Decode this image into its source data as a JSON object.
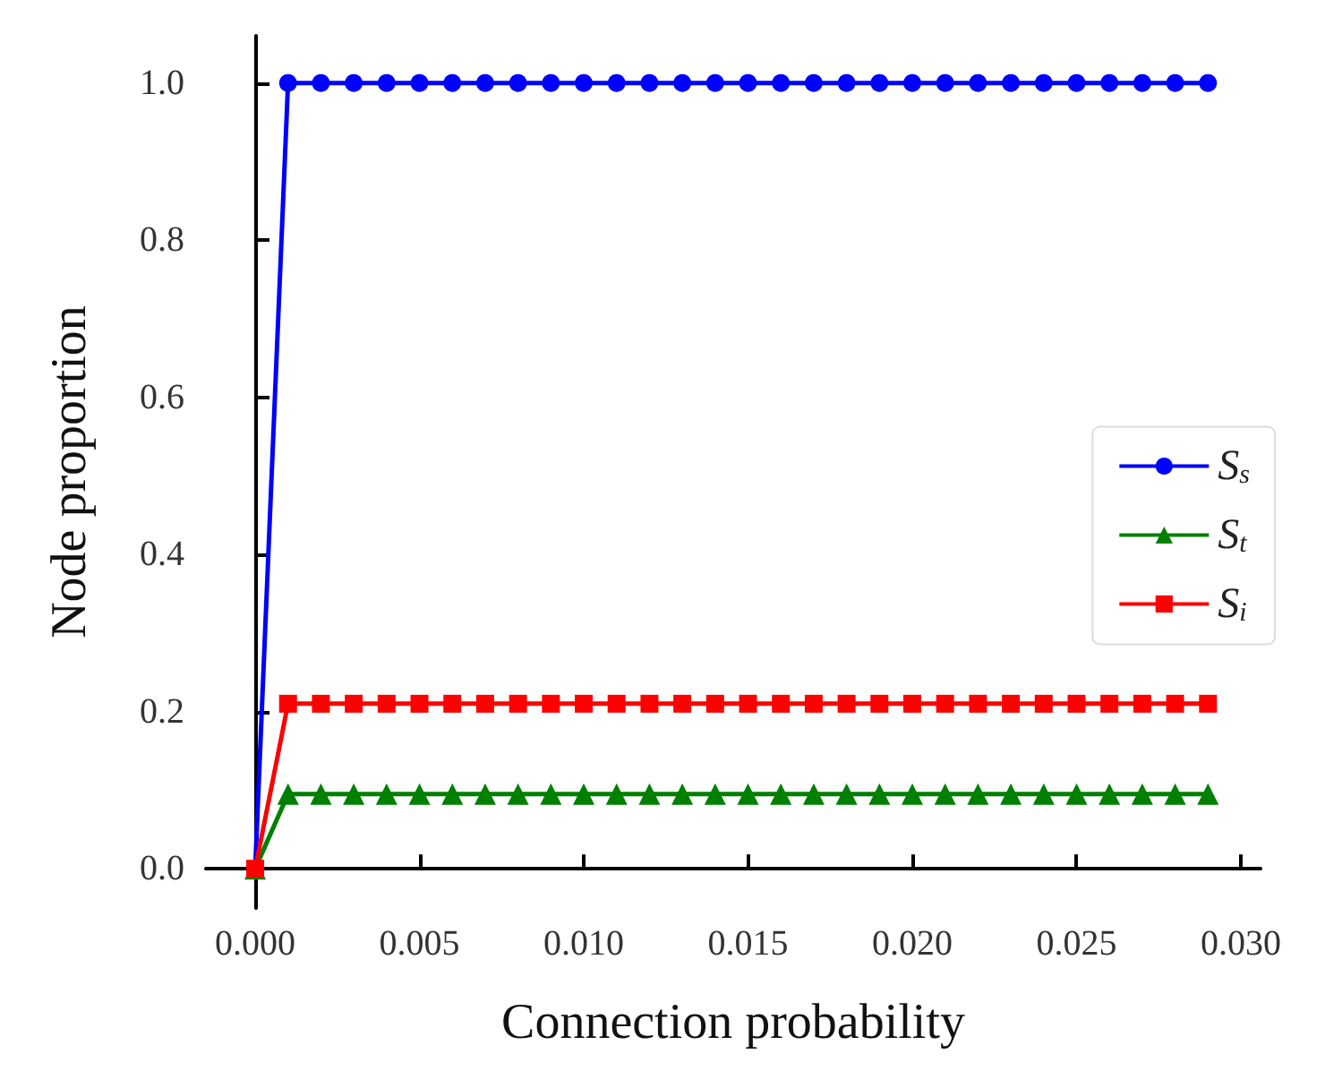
{
  "chart_data": {
    "type": "line",
    "xlabel": "Connection probability",
    "ylabel": "Node proportion",
    "x": [
      0,
      0.001,
      0.002,
      0.003,
      0.004,
      0.005,
      0.006,
      0.007,
      0.008,
      0.009,
      0.01,
      0.011,
      0.012,
      0.013,
      0.014,
      0.015,
      0.016,
      0.017,
      0.018,
      0.019,
      0.02,
      0.021,
      0.022,
      0.023,
      0.024,
      0.025,
      0.026,
      0.027,
      0.028,
      0.029
    ],
    "series": [
      {
        "name": "S$_{s}$",
        "color": "#0000ff",
        "marker": "circle",
        "values": [
          0,
          1,
          1,
          1,
          1,
          1,
          1,
          1,
          1,
          1,
          1,
          1,
          1,
          1,
          1,
          1,
          1,
          1,
          1,
          1,
          1,
          1,
          1,
          1,
          1,
          1,
          1,
          1,
          1,
          1
        ]
      },
      {
        "name": "S$_{t}$",
        "color": "#008000",
        "marker": "triangle",
        "values": [
          0,
          0.095,
          0.095,
          0.095,
          0.095,
          0.095,
          0.095,
          0.095,
          0.095,
          0.095,
          0.095,
          0.095,
          0.095,
          0.095,
          0.095,
          0.095,
          0.095,
          0.095,
          0.095,
          0.095,
          0.095,
          0.095,
          0.095,
          0.095,
          0.095,
          0.095,
          0.095,
          0.095,
          0.095,
          0.095
        ]
      },
      {
        "name": "S$_{i}$",
        "color": "#ff0000",
        "marker": "square",
        "values": [
          0,
          0.21,
          0.21,
          0.21,
          0.21,
          0.21,
          0.21,
          0.21,
          0.21,
          0.21,
          0.21,
          0.21,
          0.21,
          0.21,
          0.21,
          0.21,
          0.21,
          0.21,
          0.21,
          0.21,
          0.21,
          0.21,
          0.21,
          0.21,
          0.21,
          0.21,
          0.21,
          0.21,
          0.21,
          0.21
        ]
      }
    ],
    "xlim": [
      -0.0015,
      0.0306
    ],
    "ylim": [
      -0.05,
      1.06
    ],
    "xticks": [
      {
        "value": 0,
        "label": "0.000"
      },
      {
        "value": 0.005,
        "label": "0.005"
      },
      {
        "value": 0.01,
        "label": "0.010"
      },
      {
        "value": 0.015,
        "label": "0.015"
      },
      {
        "value": 0.02,
        "label": "0.020"
      },
      {
        "value": 0.025,
        "label": "0.025"
      },
      {
        "value": 0.03,
        "label": "0.030"
      }
    ],
    "yticks": [
      {
        "value": 0,
        "label": "0.0"
      },
      {
        "value": 0.2,
        "label": "0.2"
      },
      {
        "value": 0.4,
        "label": "0.4"
      },
      {
        "value": 0.6,
        "label": "0.6"
      },
      {
        "value": 0.8,
        "label": "0.8"
      },
      {
        "value": 1,
        "label": "1.0"
      }
    ],
    "grid": false,
    "legend": "right",
    "line_style": "solid"
  }
}
